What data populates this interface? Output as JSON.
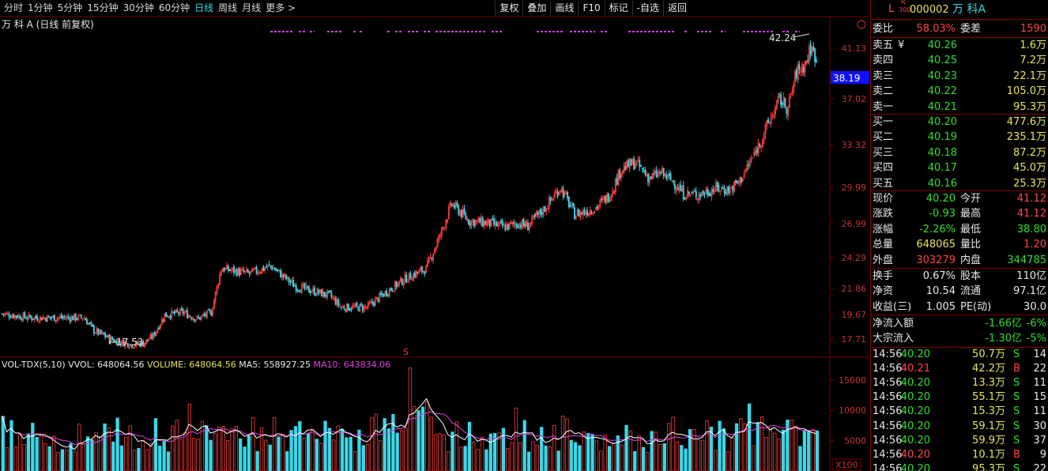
{
  "toolbar": {
    "periods": [
      "分时",
      "1分钟",
      "5分钟",
      "15分钟",
      "30分钟",
      "60分钟",
      "日线",
      "周线",
      "月线",
      "更多 >"
    ],
    "active_period": "日线",
    "tools": [
      "复权",
      "叠加",
      "画线",
      "F10",
      "标记",
      "-自选",
      "返回"
    ]
  },
  "chart_title": "万 科 A (日线 前复权)",
  "price_axis": {
    "ticks": [
      "41.13",
      "37.02",
      "33.32",
      "29.99",
      "26.99",
      "24.29",
      "21.86",
      "19.67",
      "17.71"
    ],
    "current_price_tag": "38.19",
    "high_label": "42.24",
    "low_label": "17.53",
    "s_marker": "S",
    "corner_icon": "circle-arrow-icon"
  },
  "volume_legend": {
    "name": "VOL-TDX(5,10)",
    "vvol": "VVOL: 648064.56",
    "volume": "VOLUME: 648064.56",
    "ma5": "MA5: 558927.25",
    "ma10": "MA10: 643834.06"
  },
  "volume_axis": {
    "ticks": [
      "15000",
      "10000",
      "5000"
    ],
    "unit": "X100"
  },
  "colors": {
    "up": "#ff3b3b",
    "down": "#39d8e8",
    "ma5": "#ffffff",
    "ma10": "#e040e0",
    "grid": "#7a0000"
  },
  "stock": {
    "prefix_letter": "L",
    "tag_top": "R",
    "tag_bottom": "300",
    "code": "000002",
    "name": "万 科A"
  },
  "weibi": {
    "label1": "委比",
    "val1": "58.03%",
    "label2": "委差",
    "val2": "1590"
  },
  "asks": [
    {
      "label": "卖五",
      "mark": "¥",
      "price": "40.26",
      "vol": "1.6万"
    },
    {
      "label": "卖四",
      "mark": "",
      "price": "40.25",
      "vol": "7.2万"
    },
    {
      "label": "卖三",
      "mark": "",
      "price": "40.23",
      "vol": "22.1万"
    },
    {
      "label": "卖二",
      "mark": "",
      "price": "40.22",
      "vol": "105.0万"
    },
    {
      "label": "卖一",
      "mark": "",
      "price": "40.21",
      "vol": "95.3万"
    }
  ],
  "bids": [
    {
      "label": "买一",
      "price": "40.20",
      "vol": "477.6万"
    },
    {
      "label": "买二",
      "price": "40.19",
      "vol": "235.1万"
    },
    {
      "label": "买三",
      "price": "40.18",
      "vol": "87.2万"
    },
    {
      "label": "买四",
      "price": "40.17",
      "vol": "45.0万"
    },
    {
      "label": "买五",
      "price": "40.16",
      "vol": "25.3万"
    }
  ],
  "quote": [
    {
      "l1": "现价",
      "v1": "40.20",
      "c1": "g",
      "l2": "今开",
      "v2": "41.12",
      "c2": "r"
    },
    {
      "l1": "涨跌",
      "v1": "-0.93",
      "c1": "g",
      "l2": "最高",
      "v2": "41.12",
      "c2": "r"
    },
    {
      "l1": "涨幅",
      "v1": "-2.26%",
      "c1": "g",
      "l2": "最低",
      "v2": "38.80",
      "c2": "g"
    },
    {
      "l1": "总量",
      "v1": "648065",
      "c1": "y",
      "l2": "量比",
      "v2": "1.20",
      "c2": "r"
    },
    {
      "l1": "外盘",
      "v1": "303279",
      "c1": "r",
      "l2": "内盘",
      "v2": "344785",
      "c2": "g"
    }
  ],
  "fund": [
    {
      "l1": "换手",
      "v1": "0.67%",
      "l2": "股本",
      "v2": "110亿"
    },
    {
      "l1": "净资",
      "v1": "10.54",
      "l2": "流通",
      "v2": "97.1亿"
    },
    {
      "l1": "收益(三)",
      "v1": "1.005",
      "l2": "PE(动)",
      "v2": "30.0"
    }
  ],
  "flows": [
    {
      "label": "净流入额",
      "value": "-1.66亿",
      "pct": "-6%"
    },
    {
      "label": "大宗流入",
      "value": "-1.30亿",
      "pct": "-5%"
    }
  ],
  "ticks": [
    {
      "time": "14:56",
      "price": "40.20",
      "vol": "50.7万",
      "side": "S",
      "n": "14"
    },
    {
      "time": "14:56",
      "price": "40.21",
      "vol": "42.2万",
      "side": "B",
      "n": "22"
    },
    {
      "time": "14:56",
      "price": "40.20",
      "vol": "13.3万",
      "side": "S",
      "n": "11"
    },
    {
      "time": "14:56",
      "price": "40.20",
      "vol": "55.1万",
      "side": "S",
      "n": "15"
    },
    {
      "time": "14:56",
      "price": "40.20",
      "vol": "15.3万",
      "side": "S",
      "n": "11"
    },
    {
      "time": "14:56",
      "price": "40.20",
      "vol": "59.1万",
      "side": "S",
      "n": "30"
    },
    {
      "time": "14:56",
      "price": "40.20",
      "vol": "59.9万",
      "side": "S",
      "n": "37"
    },
    {
      "time": "14:56",
      "price": "40.20",
      "vol": "10.1万",
      "side": "B",
      "n": "9"
    },
    {
      "time": "14:56",
      "price": "40.20",
      "vol": "95.3万",
      "side": "S",
      "n": "22"
    }
  ],
  "chart_data": {
    "type": "candlestick",
    "price_range": [
      17.0,
      42.8
    ],
    "volume_range": [
      0,
      18500
    ],
    "volume_unit": "X100",
    "waypoints": [
      [
        0,
        20.3
      ],
      [
        20,
        20.0
      ],
      [
        40,
        20.0
      ],
      [
        58,
        20.0
      ],
      [
        65,
        19.0
      ],
      [
        80,
        18.2
      ],
      [
        92,
        17.9
      ],
      [
        100,
        18.0
      ],
      [
        107,
        18.6
      ],
      [
        115,
        20.2
      ],
      [
        128,
        20.4
      ],
      [
        138,
        19.9
      ],
      [
        148,
        20.4
      ],
      [
        155,
        23.8
      ],
      [
        165,
        23.6
      ],
      [
        175,
        23.4
      ],
      [
        190,
        24.0
      ],
      [
        200,
        23.1
      ],
      [
        208,
        22.4
      ],
      [
        222,
        22.0
      ],
      [
        232,
        21.7
      ],
      [
        240,
        20.8
      ],
      [
        258,
        20.8
      ],
      [
        272,
        22.0
      ],
      [
        285,
        23.0
      ],
      [
        300,
        23.8
      ],
      [
        310,
        26.4
      ],
      [
        318,
        28.8
      ],
      [
        324,
        28.2
      ],
      [
        330,
        27.5
      ],
      [
        345,
        27.3
      ],
      [
        355,
        27.0
      ],
      [
        365,
        27.3
      ],
      [
        372,
        27.1
      ],
      [
        385,
        28.6
      ],
      [
        395,
        30.1
      ],
      [
        405,
        28.0
      ],
      [
        412,
        28.2
      ],
      [
        420,
        28.5
      ],
      [
        430,
        29.5
      ],
      [
        438,
        31.5
      ],
      [
        448,
        32.0
      ],
      [
        458,
        30.8
      ],
      [
        466,
        31.2
      ],
      [
        475,
        30.5
      ],
      [
        482,
        29.6
      ],
      [
        492,
        29.5
      ],
      [
        505,
        30.0
      ],
      [
        515,
        29.9
      ],
      [
        522,
        30.6
      ],
      [
        532,
        32.6
      ],
      [
        542,
        35.0
      ],
      [
        550,
        36.9
      ],
      [
        556,
        36.2
      ],
      [
        562,
        39.0
      ],
      [
        568,
        39.6
      ],
      [
        572,
        40.8
      ],
      [
        576,
        40.2
      ]
    ],
    "overlay": "MA5 / MA10 on volume"
  }
}
